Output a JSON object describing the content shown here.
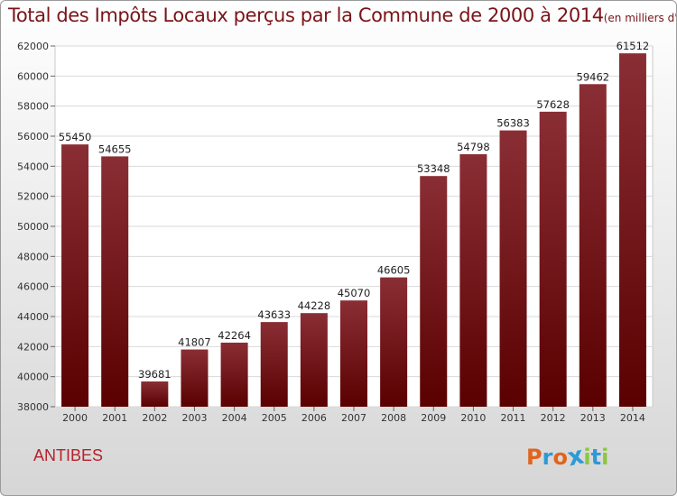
{
  "title": "Total des Impôts Locaux perçus par la Commune de 2000 à 2014",
  "title_unit": "(en milliers d'€)",
  "commune": "ANTIBES",
  "logo": {
    "letters": [
      "P",
      "r",
      "o",
      "x",
      "i",
      "t",
      "i"
    ],
    "colors": [
      "#e2641c",
      "#2d9ad6",
      "#e2641c",
      "#2d9ad6",
      "#8cc63f",
      "#2d9ad6",
      "#8cc63f"
    ]
  },
  "colors": {
    "bar_top": "#8a2e35",
    "bar_bottom": "#5a0000",
    "title": "#7a1418"
  },
  "chart_data": {
    "type": "bar",
    "title": "Total des Impôts Locaux perçus par la Commune de 2000 à 2014",
    "xlabel": "",
    "ylabel": "",
    "categories": [
      "2000",
      "2001",
      "2002",
      "2003",
      "2004",
      "2005",
      "2006",
      "2007",
      "2008",
      "2009",
      "2010",
      "2011",
      "2012",
      "2013",
      "2014"
    ],
    "values": [
      55450,
      54655,
      39681,
      41807,
      42264,
      43633,
      44228,
      45070,
      46605,
      53348,
      54798,
      56383,
      57628,
      59462,
      61512
    ],
    "ylim": [
      38000,
      62000
    ],
    "yticks": [
      38000,
      40000,
      42000,
      44000,
      46000,
      48000,
      50000,
      52000,
      54000,
      56000,
      58000,
      60000,
      62000
    ],
    "grid": true
  }
}
